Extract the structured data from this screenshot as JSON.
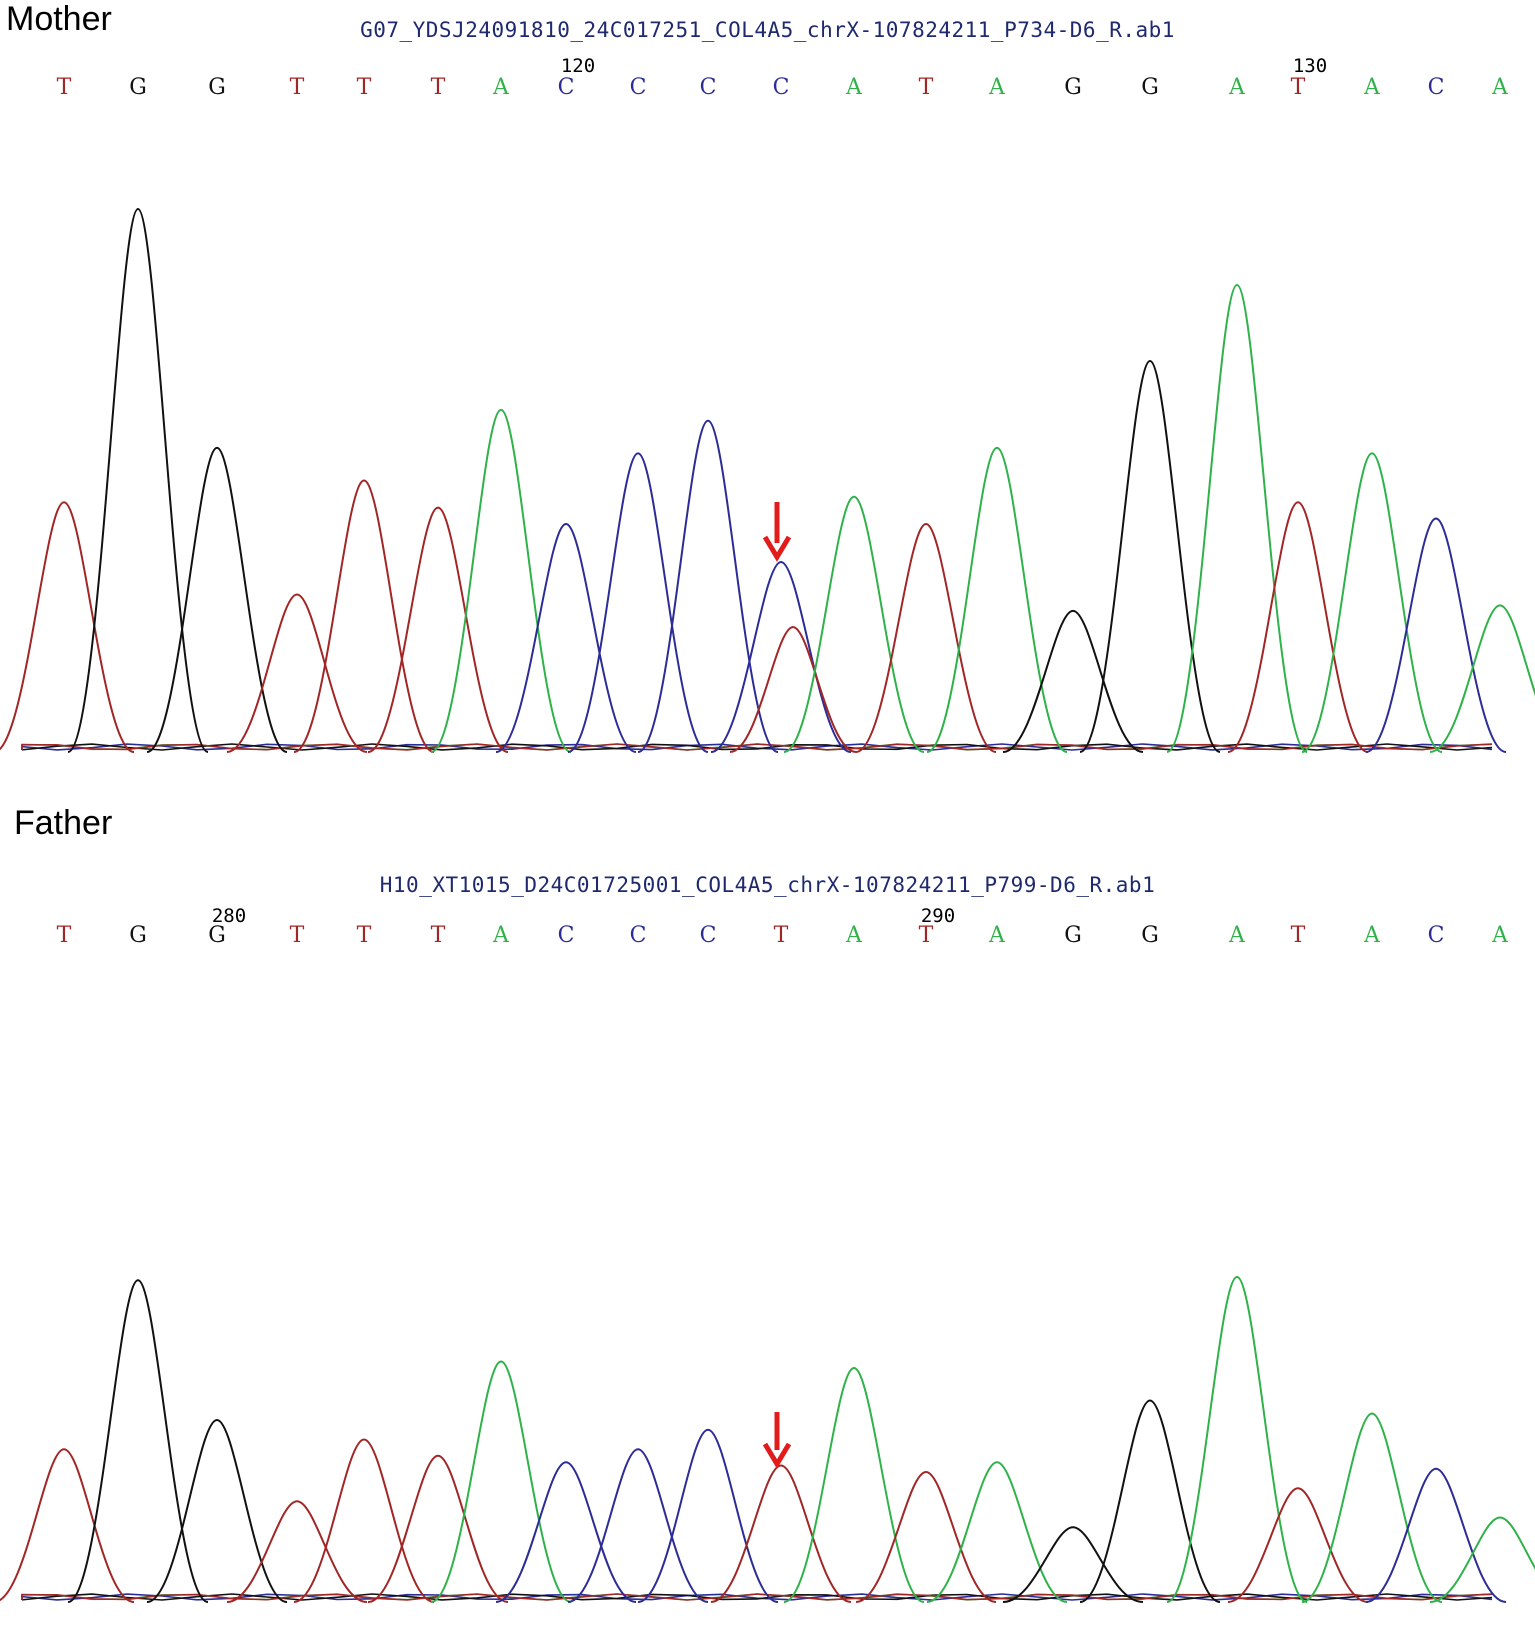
{
  "colors": {
    "A": "#2fb24a",
    "C": "#2c2c96",
    "G": "#111111",
    "T": "#a12626",
    "arrow": "#e21b1b"
  },
  "chart_data": [
    {
      "type": "line",
      "title": "Mother",
      "file_name": "G07_YDSJ24091810_24C017251_COL4A5_chrX-107824211_P734-D6_R.ab1",
      "bases": [
        "T",
        "G",
        "G",
        "T",
        "T",
        "T",
        "A",
        "C",
        "C",
        "C",
        "C",
        "A",
        "T",
        "A",
        "G",
        "G",
        "A",
        "T",
        "A",
        "C",
        "A"
      ],
      "position_labels": [
        {
          "index": 7,
          "label": "120"
        },
        {
          "index": 17,
          "label": "130"
        }
      ],
      "arrow_index": 10,
      "peaks": [
        {
          "base": "T",
          "height": 0.46
        },
        {
          "base": "G",
          "height": 1.0
        },
        {
          "base": "G",
          "height": 0.56
        },
        {
          "base": "T",
          "height": 0.29
        },
        {
          "base": "T",
          "height": 0.5
        },
        {
          "base": "T",
          "height": 0.45
        },
        {
          "base": "A",
          "height": 0.63
        },
        {
          "base": "C",
          "height": 0.42
        },
        {
          "base": "C",
          "height": 0.55
        },
        {
          "base": "C",
          "height": 0.61
        },
        {
          "base": "C",
          "height": 0.35,
          "secondary": {
            "base": "T",
            "height": 0.23
          }
        },
        {
          "base": "A",
          "height": 0.47
        },
        {
          "base": "T",
          "height": 0.42
        },
        {
          "base": "A",
          "height": 0.56
        },
        {
          "base": "G",
          "height": 0.26
        },
        {
          "base": "G",
          "height": 0.72
        },
        {
          "base": "A",
          "height": 0.86
        },
        {
          "base": "T",
          "height": 0.46
        },
        {
          "base": "A",
          "height": 0.55
        },
        {
          "base": "C",
          "height": 0.43
        },
        {
          "base": "A",
          "height": 0.27
        }
      ]
    },
    {
      "type": "line",
      "title": "Father",
      "file_name": "H10_XT1015_D24C01725001_COL4A5_chrX-107824211_P799-D6_R.ab1",
      "bases": [
        "T",
        "G",
        "G",
        "T",
        "T",
        "T",
        "A",
        "C",
        "C",
        "C",
        "T",
        "A",
        "T",
        "A",
        "G",
        "G",
        "A",
        "T",
        "A",
        "C",
        "A"
      ],
      "position_labels": [
        {
          "index": 2,
          "label": "280"
        },
        {
          "index": 12,
          "label": "290"
        }
      ],
      "arrow_index": 10,
      "peaks": [
        {
          "base": "T",
          "height": 0.47
        },
        {
          "base": "G",
          "height": 0.99
        },
        {
          "base": "G",
          "height": 0.56
        },
        {
          "base": "T",
          "height": 0.31
        },
        {
          "base": "T",
          "height": 0.5
        },
        {
          "base": "T",
          "height": 0.45
        },
        {
          "base": "A",
          "height": 0.74
        },
        {
          "base": "C",
          "height": 0.43
        },
        {
          "base": "C",
          "height": 0.47
        },
        {
          "base": "C",
          "height": 0.53
        },
        {
          "base": "T",
          "height": 0.42
        },
        {
          "base": "A",
          "height": 0.72
        },
        {
          "base": "T",
          "height": 0.4
        },
        {
          "base": "A",
          "height": 0.43
        },
        {
          "base": "G",
          "height": 0.23
        },
        {
          "base": "G",
          "height": 0.62
        },
        {
          "base": "A",
          "height": 1.0
        },
        {
          "base": "T",
          "height": 0.35
        },
        {
          "base": "A",
          "height": 0.58
        },
        {
          "base": "C",
          "height": 0.41
        },
        {
          "base": "A",
          "height": 0.26
        }
      ]
    }
  ]
}
